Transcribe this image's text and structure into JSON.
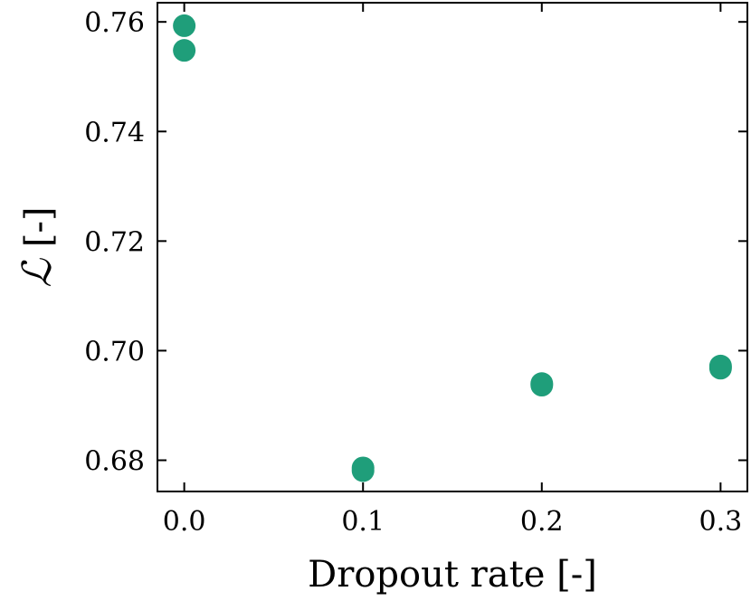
{
  "chart_data": {
    "type": "scatter",
    "xlabel": "Dropout rate [-]",
    "ylabel_symbol": "ℒ",
    "ylabel_unit": " [-]",
    "xlim": [
      -0.015,
      0.315
    ],
    "ylim": [
      0.6743,
      0.7635
    ],
    "xticks": [
      0.0,
      0.1,
      0.2,
      0.3
    ],
    "xtick_labels": [
      "0.0",
      "0.1",
      "0.2",
      "0.3"
    ],
    "yticks": [
      0.68,
      0.7,
      0.72,
      0.74,
      0.76
    ],
    "ytick_labels": [
      "0.68",
      "0.70",
      "0.72",
      "0.74",
      "0.76"
    ],
    "grid": false,
    "series": [
      {
        "color": "#1f9e7a",
        "points": [
          {
            "x": 0.0,
            "y": 0.7593
          },
          {
            "x": 0.0,
            "y": 0.7548
          },
          {
            "x": 0.1,
            "y": 0.6786
          },
          {
            "x": 0.1,
            "y": 0.6781
          },
          {
            "x": 0.2,
            "y": 0.694
          },
          {
            "x": 0.2,
            "y": 0.6937
          },
          {
            "x": 0.3,
            "y": 0.6972
          },
          {
            "x": 0.3,
            "y": 0.6968
          }
        ]
      }
    ]
  }
}
